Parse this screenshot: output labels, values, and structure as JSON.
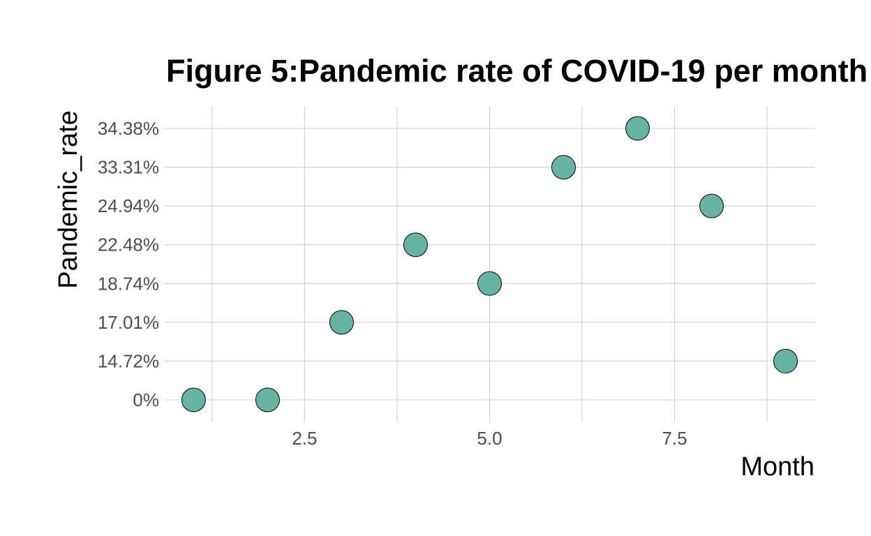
{
  "chart_data": {
    "type": "scatter",
    "title": "Figure 5:Pandemic rate of COVID-19 per month",
    "xlabel": "Month",
    "ylabel": "Pandemic_rate",
    "x": [
      1,
      2,
      3,
      4,
      5,
      6,
      7,
      8,
      9
    ],
    "y_labels": [
      "0%",
      "0%",
      "17.01%",
      "22.48%",
      "18.74%",
      "33.31%",
      "34.38%",
      "24.94%",
      "14.72%"
    ],
    "y_categories": [
      "0%",
      "14.72%",
      "17.01%",
      "18.74%",
      "22.48%",
      "24.94%",
      "33.31%",
      "34.38%"
    ],
    "x_ticks": [
      2.5,
      5.0,
      7.5
    ],
    "x_tick_labels": [
      "2.5",
      "5.0",
      "7.5"
    ],
    "xlim": [
      0.6,
      9.4
    ],
    "y_axis_scale": "discrete",
    "grid": true,
    "legend": "none",
    "point_color": "#66b2a3",
    "point_border_color": "#000000",
    "grid_color": "#d0d0d0",
    "tick_label_color": "#4d4d4d"
  }
}
